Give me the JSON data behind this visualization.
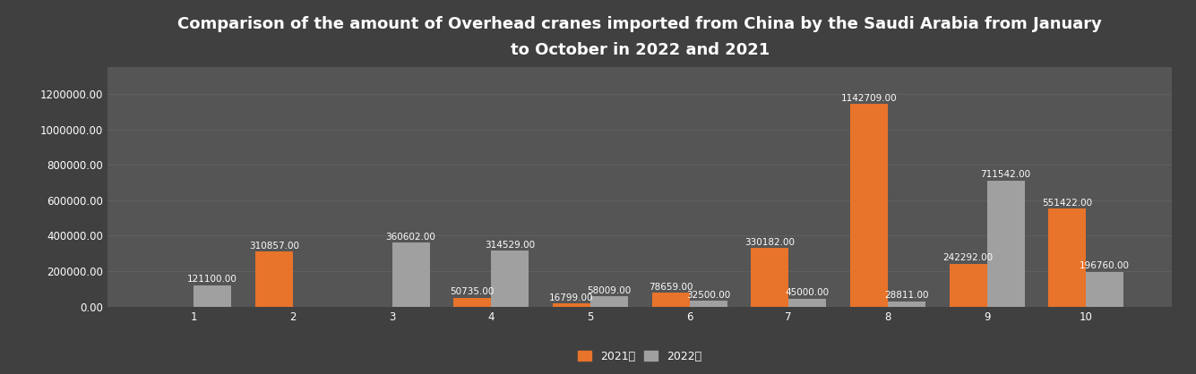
{
  "title_line1": "Comparison of the amount of Overhead cranes imported from China by the Saudi Arabia from January",
  "title_line2": "to October in 2022 and 2021",
  "months": [
    1,
    2,
    3,
    4,
    5,
    6,
    7,
    8,
    9,
    10
  ],
  "values_2021": [
    0,
    310857.0,
    0,
    50735.0,
    16799.0,
    78659.0,
    330182.0,
    1142709.0,
    242292.0,
    551422.0
  ],
  "values_2022": [
    121100.0,
    0,
    360602.0,
    314529.0,
    58009.0,
    32500.0,
    45000.0,
    28811.0,
    711542.0,
    196760.0
  ],
  "color_2021": "#E8732A",
  "color_2022": "#A0A0A0",
  "bg_color": "#404040",
  "plot_bg_color": "#555555",
  "text_color": "#FFFFFF",
  "grid_color": "#606060",
  "legend_2021": "2021年",
  "legend_2022": "2022年",
  "ylim": [
    0,
    1350000
  ],
  "yticks": [
    0,
    200000,
    400000,
    600000,
    800000,
    1000000,
    1200000
  ],
  "bar_width": 0.38,
  "title_fontsize": 13,
  "label_fontsize": 7.5,
  "tick_fontsize": 8.5,
  "legend_fontsize": 9
}
